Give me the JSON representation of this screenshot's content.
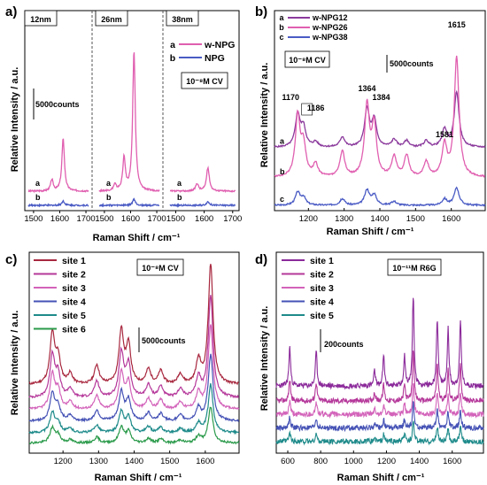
{
  "chart_data": [
    {
      "id": "a",
      "panel_label": "a)",
      "type": "line",
      "ylabel": "Relative Intensity / a.u.",
      "xlabel": "Raman Shift / cm⁻¹",
      "subpanels": [
        {
          "size_label": "12nm",
          "xlim": [
            1480,
            1710
          ],
          "xticks": [
            "1500",
            "1600",
            "1700"
          ],
          "peaks": {
            "a": [
              [
                1570,
                0.9
              ],
              [
                1613,
                4.2
              ]
            ],
            "b": [
              [
                1613,
                0.35
              ]
            ]
          }
        },
        {
          "size_label": "26nm",
          "xlim": [
            1480,
            1710
          ],
          "xticks": [
            "1500",
            "1600",
            "1700"
          ],
          "peaks": {
            "a": [
              [
                1540,
                0.5
              ],
              [
                1575,
                2.6
              ],
              [
                1613,
                11.2
              ]
            ],
            "b": [
              [
                1613,
                0.5
              ]
            ]
          }
        },
        {
          "size_label": "38nm",
          "xlim": [
            1480,
            1710
          ],
          "xticks": [
            "1500",
            "1600",
            "1700"
          ],
          "peaks": {
            "a": [
              [
                1575,
                0.6
              ],
              [
                1613,
                1.9
              ]
            ],
            "b": [
              [
                1613,
                0.3
              ]
            ]
          }
        }
      ],
      "series": [
        {
          "letter": "a",
          "name": "w-NPG",
          "color": "#e05fb0"
        },
        {
          "letter": "b",
          "name": "NPG",
          "color": "#4a5bc4"
        }
      ],
      "annotation": "10⁻⁸M CV",
      "scale_bar": "5000counts"
    },
    {
      "id": "b",
      "panel_label": "b)",
      "type": "line",
      "ylabel": "Relative Intensity / a.u.",
      "xlabel": "Raman Shift / cm⁻¹",
      "xlim": [
        1105,
        1695
      ],
      "xticks": [
        1200,
        1300,
        1400,
        1500,
        1600
      ],
      "series": [
        {
          "letter": "a",
          "name": "w-NPG12",
          "color": "#8b3a9c",
          "offset": 4.6,
          "peaks": [
            [
              1170,
              2.6
            ],
            [
              1186,
              1.5
            ],
            [
              1220,
              0.4
            ],
            [
              1295,
              0.8
            ],
            [
              1364,
              3.0
            ],
            [
              1384,
              2.1
            ],
            [
              1440,
              0.6
            ],
            [
              1475,
              0.5
            ],
            [
              1530,
              0.5
            ],
            [
              1581,
              1.4
            ],
            [
              1615,
              4.4
            ]
          ]
        },
        {
          "letter": "b",
          "name": "w-NPG26",
          "color": "#e05fb0",
          "offset": 2.2,
          "peaks": [
            [
              1170,
              4.8
            ],
            [
              1186,
              2.4
            ],
            [
              1220,
              1.0
            ],
            [
              1295,
              2.0
            ],
            [
              1364,
              5.6
            ],
            [
              1384,
              4.0
            ],
            [
              1440,
              1.6
            ],
            [
              1475,
              1.7
            ],
            [
              1530,
              1.2
            ],
            [
              1581,
              2.5
            ],
            [
              1615,
              9.5
            ]
          ]
        },
        {
          "letter": "c",
          "name": "w-NPG38",
          "color": "#4a5bc4",
          "offset": 0.0,
          "peaks": [
            [
              1170,
              1.0
            ],
            [
              1186,
              0.6
            ],
            [
              1295,
              0.5
            ],
            [
              1364,
              1.2
            ],
            [
              1384,
              0.8
            ],
            [
              1440,
              0.3
            ],
            [
              1581,
              0.5
            ],
            [
              1615,
              1.4
            ]
          ]
        }
      ],
      "peak_labels": [
        "1170",
        "1186",
        "1364",
        "1384",
        "1581",
        "1615"
      ],
      "annotation": "10⁻⁸M CV",
      "scale_bar": "5000counts"
    },
    {
      "id": "c",
      "panel_label": "c)",
      "type": "line",
      "ylabel": "Relative Intensity / a.u.",
      "xlabel": "Raman Shift / cm⁻¹",
      "xlim": [
        1105,
        1695
      ],
      "xticks": [
        1200,
        1300,
        1400,
        1500,
        1600
      ],
      "series": [
        {
          "name": "site 1",
          "color": "#a8283f",
          "offset": 4.2,
          "scale": 1.0
        },
        {
          "name": "site 2",
          "color": "#b5389a",
          "offset": 3.3,
          "scale": 0.85
        },
        {
          "name": "site 3",
          "color": "#d363ba",
          "offset": 2.5,
          "scale": 0.7
        },
        {
          "name": "site 4",
          "color": "#4552b5",
          "offset": 1.7,
          "scale": 0.55
        },
        {
          "name": "site 5",
          "color": "#1e8a8a",
          "offset": 0.9,
          "scale": 0.4
        },
        {
          "name": "site 6",
          "color": "#2a9a4a",
          "offset": 0.2,
          "scale": 0.3
        }
      ],
      "peaks": [
        [
          1170,
          3.4
        ],
        [
          1186,
          1.8
        ],
        [
          1220,
          0.7
        ],
        [
          1295,
          1.3
        ],
        [
          1364,
          3.6
        ],
        [
          1384,
          2.6
        ],
        [
          1440,
          1.0
        ],
        [
          1475,
          0.9
        ],
        [
          1530,
          0.7
        ],
        [
          1581,
          1.6
        ],
        [
          1615,
          8.2
        ]
      ],
      "annotation": "10⁻⁸M CV",
      "scale_bar": "5000counts"
    },
    {
      "id": "d",
      "panel_label": "d)",
      "type": "line",
      "ylabel": "Relative Intensity / a.u.",
      "xlabel": "Raman Shift / cm⁻¹",
      "xlim": [
        530,
        1790
      ],
      "xticks": [
        600,
        800,
        1000,
        1200,
        1400,
        1600
      ],
      "series": [
        {
          "name": "site 1",
          "color": "#8b2a9a",
          "offset": 4.0,
          "scale": 1.0
        },
        {
          "name": "site 2",
          "color": "#b5389a",
          "offset": 3.0,
          "scale": 0.55
        },
        {
          "name": "site 3",
          "color": "#d363ba",
          "offset": 2.1,
          "scale": 0.35
        },
        {
          "name": "site 4",
          "color": "#4552b5",
          "offset": 1.2,
          "scale": 0.28
        },
        {
          "name": "site 5",
          "color": "#1e8a8a",
          "offset": 0.3,
          "scale": 0.22
        }
      ],
      "peaks": [
        [
          612,
          2.6
        ],
        [
          773,
          2.3
        ],
        [
          1128,
          1.0
        ],
        [
          1183,
          2.0
        ],
        [
          1310,
          2.0
        ],
        [
          1363,
          6.0
        ],
        [
          1509,
          4.5
        ],
        [
          1575,
          3.8
        ],
        [
          1650,
          4.3
        ]
      ],
      "annotation": "10⁻¹¹M R6G",
      "scale_bar": "200counts"
    }
  ]
}
